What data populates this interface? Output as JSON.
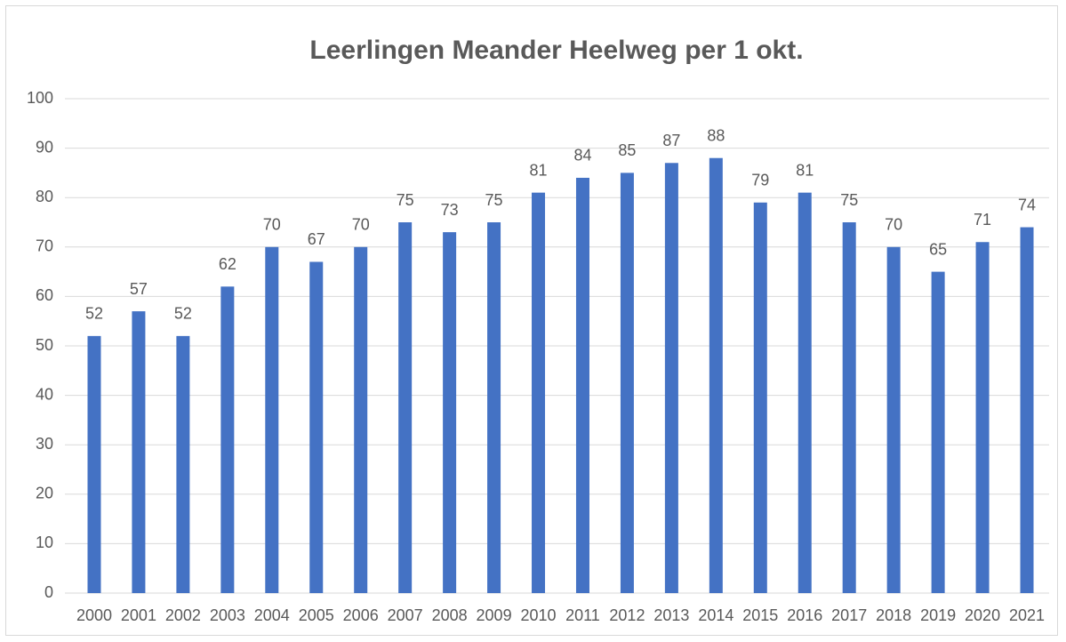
{
  "chart_data": {
    "type": "bar",
    "title": "Leerlingen Meander Heelweg per 1 okt.",
    "categories": [
      "2000",
      "2001",
      "2002",
      "2003",
      "2004",
      "2005",
      "2006",
      "2007",
      "2008",
      "2009",
      "2010",
      "2011",
      "2012",
      "2013",
      "2014",
      "2015",
      "2016",
      "2017",
      "2018",
      "2019",
      "2020",
      "2021"
    ],
    "values": [
      52,
      57,
      52,
      62,
      70,
      67,
      70,
      75,
      73,
      75,
      81,
      84,
      85,
      87,
      88,
      79,
      81,
      75,
      70,
      65,
      71,
      74
    ],
    "color": "#4472c4",
    "ylim": [
      0,
      100
    ],
    "yticks": [
      0,
      10,
      20,
      30,
      40,
      50,
      60,
      70,
      80,
      90,
      100
    ],
    "grid": true
  }
}
